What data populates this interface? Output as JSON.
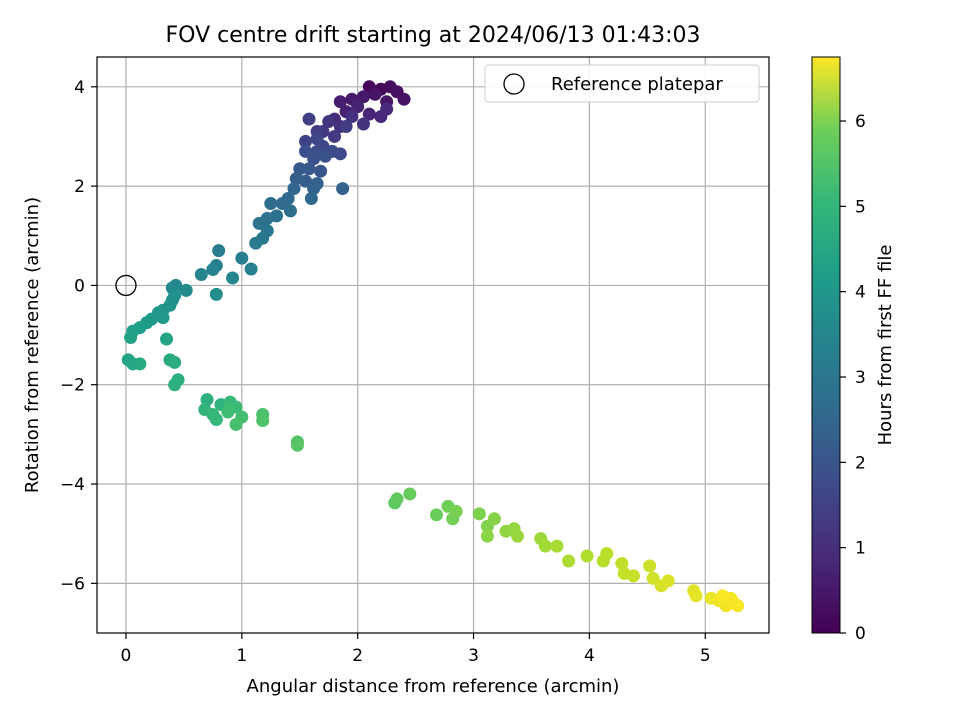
{
  "chart_data": {
    "type": "scatter",
    "title": "FOV centre drift starting at 2024/06/13 01:43:03",
    "xlabel": "Angular distance from reference (arcmin)",
    "ylabel": "Rotation from reference (arcmin)",
    "xlim": [
      -0.25,
      5.55
    ],
    "ylim": [
      -7.0,
      4.6
    ],
    "xticks": [
      0,
      1,
      2,
      3,
      4,
      5
    ],
    "yticks": [
      -6,
      -4,
      -2,
      0,
      2,
      4
    ],
    "grid": true,
    "legend": {
      "position": "top-right",
      "label": "Reference platepar"
    },
    "reference_point": {
      "x": 0,
      "y": 0
    },
    "colorbar": {
      "label": "Hours from first FF file",
      "range": [
        0,
        6.75
      ],
      "ticks": [
        0,
        1,
        2,
        3,
        4,
        5,
        6
      ],
      "colormap": "viridis"
    },
    "points": [
      [
        2.1,
        4.0,
        0.1
      ],
      [
        2.2,
        3.95,
        0.15
      ],
      [
        2.28,
        4.0,
        0.2
      ],
      [
        2.34,
        3.9,
        0.25
      ],
      [
        2.4,
        3.75,
        0.3
      ],
      [
        2.15,
        3.85,
        0.35
      ],
      [
        2.25,
        3.7,
        0.4
      ],
      [
        2.05,
        3.8,
        0.45
      ],
      [
        1.95,
        3.75,
        0.5
      ],
      [
        1.85,
        3.7,
        0.55
      ],
      [
        1.9,
        3.5,
        0.6
      ],
      [
        2.0,
        3.6,
        0.65
      ],
      [
        2.1,
        3.45,
        0.7
      ],
      [
        2.2,
        3.4,
        0.75
      ],
      [
        2.25,
        3.55,
        0.8
      ],
      [
        1.8,
        3.35,
        0.85
      ],
      [
        1.85,
        3.2,
        0.9
      ],
      [
        1.95,
        3.4,
        0.95
      ],
      [
        2.05,
        3.25,
        1.0
      ],
      [
        1.75,
        3.3,
        1.05
      ],
      [
        1.7,
        3.1,
        1.1
      ],
      [
        1.8,
        3.0,
        1.15
      ],
      [
        1.9,
        3.2,
        1.2
      ],
      [
        1.65,
        3.1,
        1.25
      ],
      [
        1.58,
        3.35,
        1.3
      ],
      [
        1.55,
        2.9,
        1.35
      ],
      [
        1.65,
        2.95,
        1.4
      ],
      [
        1.7,
        2.8,
        1.45
      ],
      [
        1.85,
        2.65,
        1.5
      ],
      [
        1.78,
        2.7,
        1.55
      ],
      [
        1.65,
        2.7,
        1.6
      ],
      [
        1.55,
        2.7,
        1.65
      ],
      [
        1.62,
        2.55,
        1.7
      ],
      [
        1.72,
        2.6,
        1.75
      ],
      [
        1.68,
        2.3,
        1.8
      ],
      [
        1.58,
        2.35,
        1.85
      ],
      [
        1.5,
        2.35,
        1.9
      ],
      [
        1.47,
        2.15,
        1.95
      ],
      [
        1.55,
        2.1,
        2.0
      ],
      [
        1.65,
        2.05,
        2.05
      ],
      [
        1.87,
        1.95,
        2.1
      ],
      [
        1.62,
        1.95,
        2.15
      ],
      [
        1.45,
        1.95,
        2.2
      ],
      [
        1.6,
        1.75,
        2.25
      ],
      [
        1.4,
        1.75,
        2.3
      ],
      [
        1.35,
        1.65,
        2.35
      ],
      [
        1.25,
        1.65,
        2.4
      ],
      [
        1.42,
        1.5,
        2.45
      ],
      [
        1.3,
        1.4,
        2.5
      ],
      [
        1.22,
        1.35,
        2.55
      ],
      [
        1.15,
        1.25,
        2.6
      ],
      [
        1.22,
        1.1,
        2.65
      ],
      [
        1.18,
        0.95,
        2.7
      ],
      [
        1.12,
        0.85,
        2.75
      ],
      [
        0.8,
        0.7,
        2.8
      ],
      [
        1.0,
        0.55,
        2.85
      ],
      [
        0.78,
        0.4,
        2.9
      ],
      [
        1.08,
        0.33,
        2.95
      ],
      [
        0.75,
        0.32,
        3.0
      ],
      [
        0.65,
        0.22,
        3.05
      ],
      [
        0.92,
        0.15,
        3.1
      ],
      [
        0.43,
        0.0,
        3.15
      ],
      [
        0.4,
        -0.05,
        3.2
      ],
      [
        0.52,
        -0.1,
        3.25
      ],
      [
        0.78,
        -0.18,
        3.3
      ],
      [
        0.42,
        -0.2,
        3.35
      ],
      [
        0.4,
        -0.3,
        3.4
      ],
      [
        0.38,
        -0.4,
        3.45
      ],
      [
        0.32,
        -0.5,
        3.5
      ],
      [
        0.28,
        -0.55,
        3.55
      ],
      [
        0.32,
        -0.65,
        3.6
      ],
      [
        0.22,
        -0.68,
        3.65
      ],
      [
        0.18,
        -0.75,
        3.7
      ],
      [
        0.12,
        -0.85,
        3.75
      ],
      [
        0.06,
        -0.92,
        3.8
      ],
      [
        0.04,
        -1.05,
        3.85
      ],
      [
        0.35,
        -1.08,
        3.9
      ],
      [
        0.02,
        -1.5,
        3.95
      ],
      [
        0.06,
        -1.58,
        4.0
      ],
      [
        0.12,
        -1.58,
        4.05
      ],
      [
        0.38,
        -1.5,
        4.1
      ],
      [
        0.42,
        -1.55,
        4.15
      ],
      [
        0.45,
        -1.9,
        4.2
      ],
      [
        0.42,
        -2.0,
        4.25
      ],
      [
        0.7,
        -2.3,
        4.3
      ],
      [
        0.82,
        -2.4,
        4.35
      ],
      [
        0.68,
        -2.5,
        4.4
      ],
      [
        0.75,
        -2.6,
        4.45
      ],
      [
        0.78,
        -2.7,
        4.5
      ],
      [
        0.9,
        -2.35,
        4.55
      ],
      [
        0.95,
        -2.45,
        4.6
      ],
      [
        0.88,
        -2.55,
        4.65
      ],
      [
        1.0,
        -2.65,
        4.7
      ],
      [
        0.95,
        -2.8,
        4.75
      ],
      [
        1.18,
        -2.6,
        4.8
      ],
      [
        1.18,
        -2.72,
        4.85
      ],
      [
        1.48,
        -3.15,
        4.9
      ],
      [
        1.48,
        -3.22,
        4.95
      ],
      [
        2.32,
        -4.38,
        5.05
      ],
      [
        2.34,
        -4.3,
        5.1
      ],
      [
        2.45,
        -4.2,
        5.15
      ],
      [
        2.68,
        -4.62,
        5.2
      ],
      [
        2.78,
        -4.45,
        5.25
      ],
      [
        2.82,
        -4.7,
        5.3
      ],
      [
        2.85,
        -4.55,
        5.35
      ],
      [
        3.05,
        -4.6,
        5.4
      ],
      [
        3.12,
        -4.85,
        5.45
      ],
      [
        3.18,
        -4.7,
        5.5
      ],
      [
        3.12,
        -5.05,
        5.55
      ],
      [
        3.28,
        -4.95,
        5.6
      ],
      [
        3.35,
        -4.9,
        5.65
      ],
      [
        3.38,
        -5.05,
        5.7
      ],
      [
        3.58,
        -5.1,
        5.75
      ],
      [
        3.62,
        -5.25,
        5.8
      ],
      [
        3.72,
        -5.25,
        5.85
      ],
      [
        3.82,
        -5.55,
        5.9
      ],
      [
        3.98,
        -5.45,
        5.95
      ],
      [
        4.12,
        -5.55,
        6.0
      ],
      [
        4.15,
        -5.4,
        6.05
      ],
      [
        4.28,
        -5.6,
        6.1
      ],
      [
        4.3,
        -5.8,
        6.15
      ],
      [
        4.38,
        -5.85,
        6.2
      ],
      [
        4.52,
        -5.65,
        6.25
      ],
      [
        4.55,
        -5.9,
        6.3
      ],
      [
        4.62,
        -6.05,
        6.35
      ],
      [
        4.68,
        -5.95,
        6.4
      ],
      [
        4.9,
        -6.15,
        6.45
      ],
      [
        4.92,
        -6.25,
        6.5
      ],
      [
        5.05,
        -6.3,
        6.55
      ],
      [
        5.12,
        -6.35,
        6.6
      ],
      [
        5.18,
        -6.45,
        6.62
      ],
      [
        5.22,
        -6.3,
        6.65
      ],
      [
        5.25,
        -6.4,
        6.68
      ],
      [
        5.28,
        -6.45,
        6.7
      ],
      [
        5.15,
        -6.25,
        6.72
      ]
    ]
  }
}
